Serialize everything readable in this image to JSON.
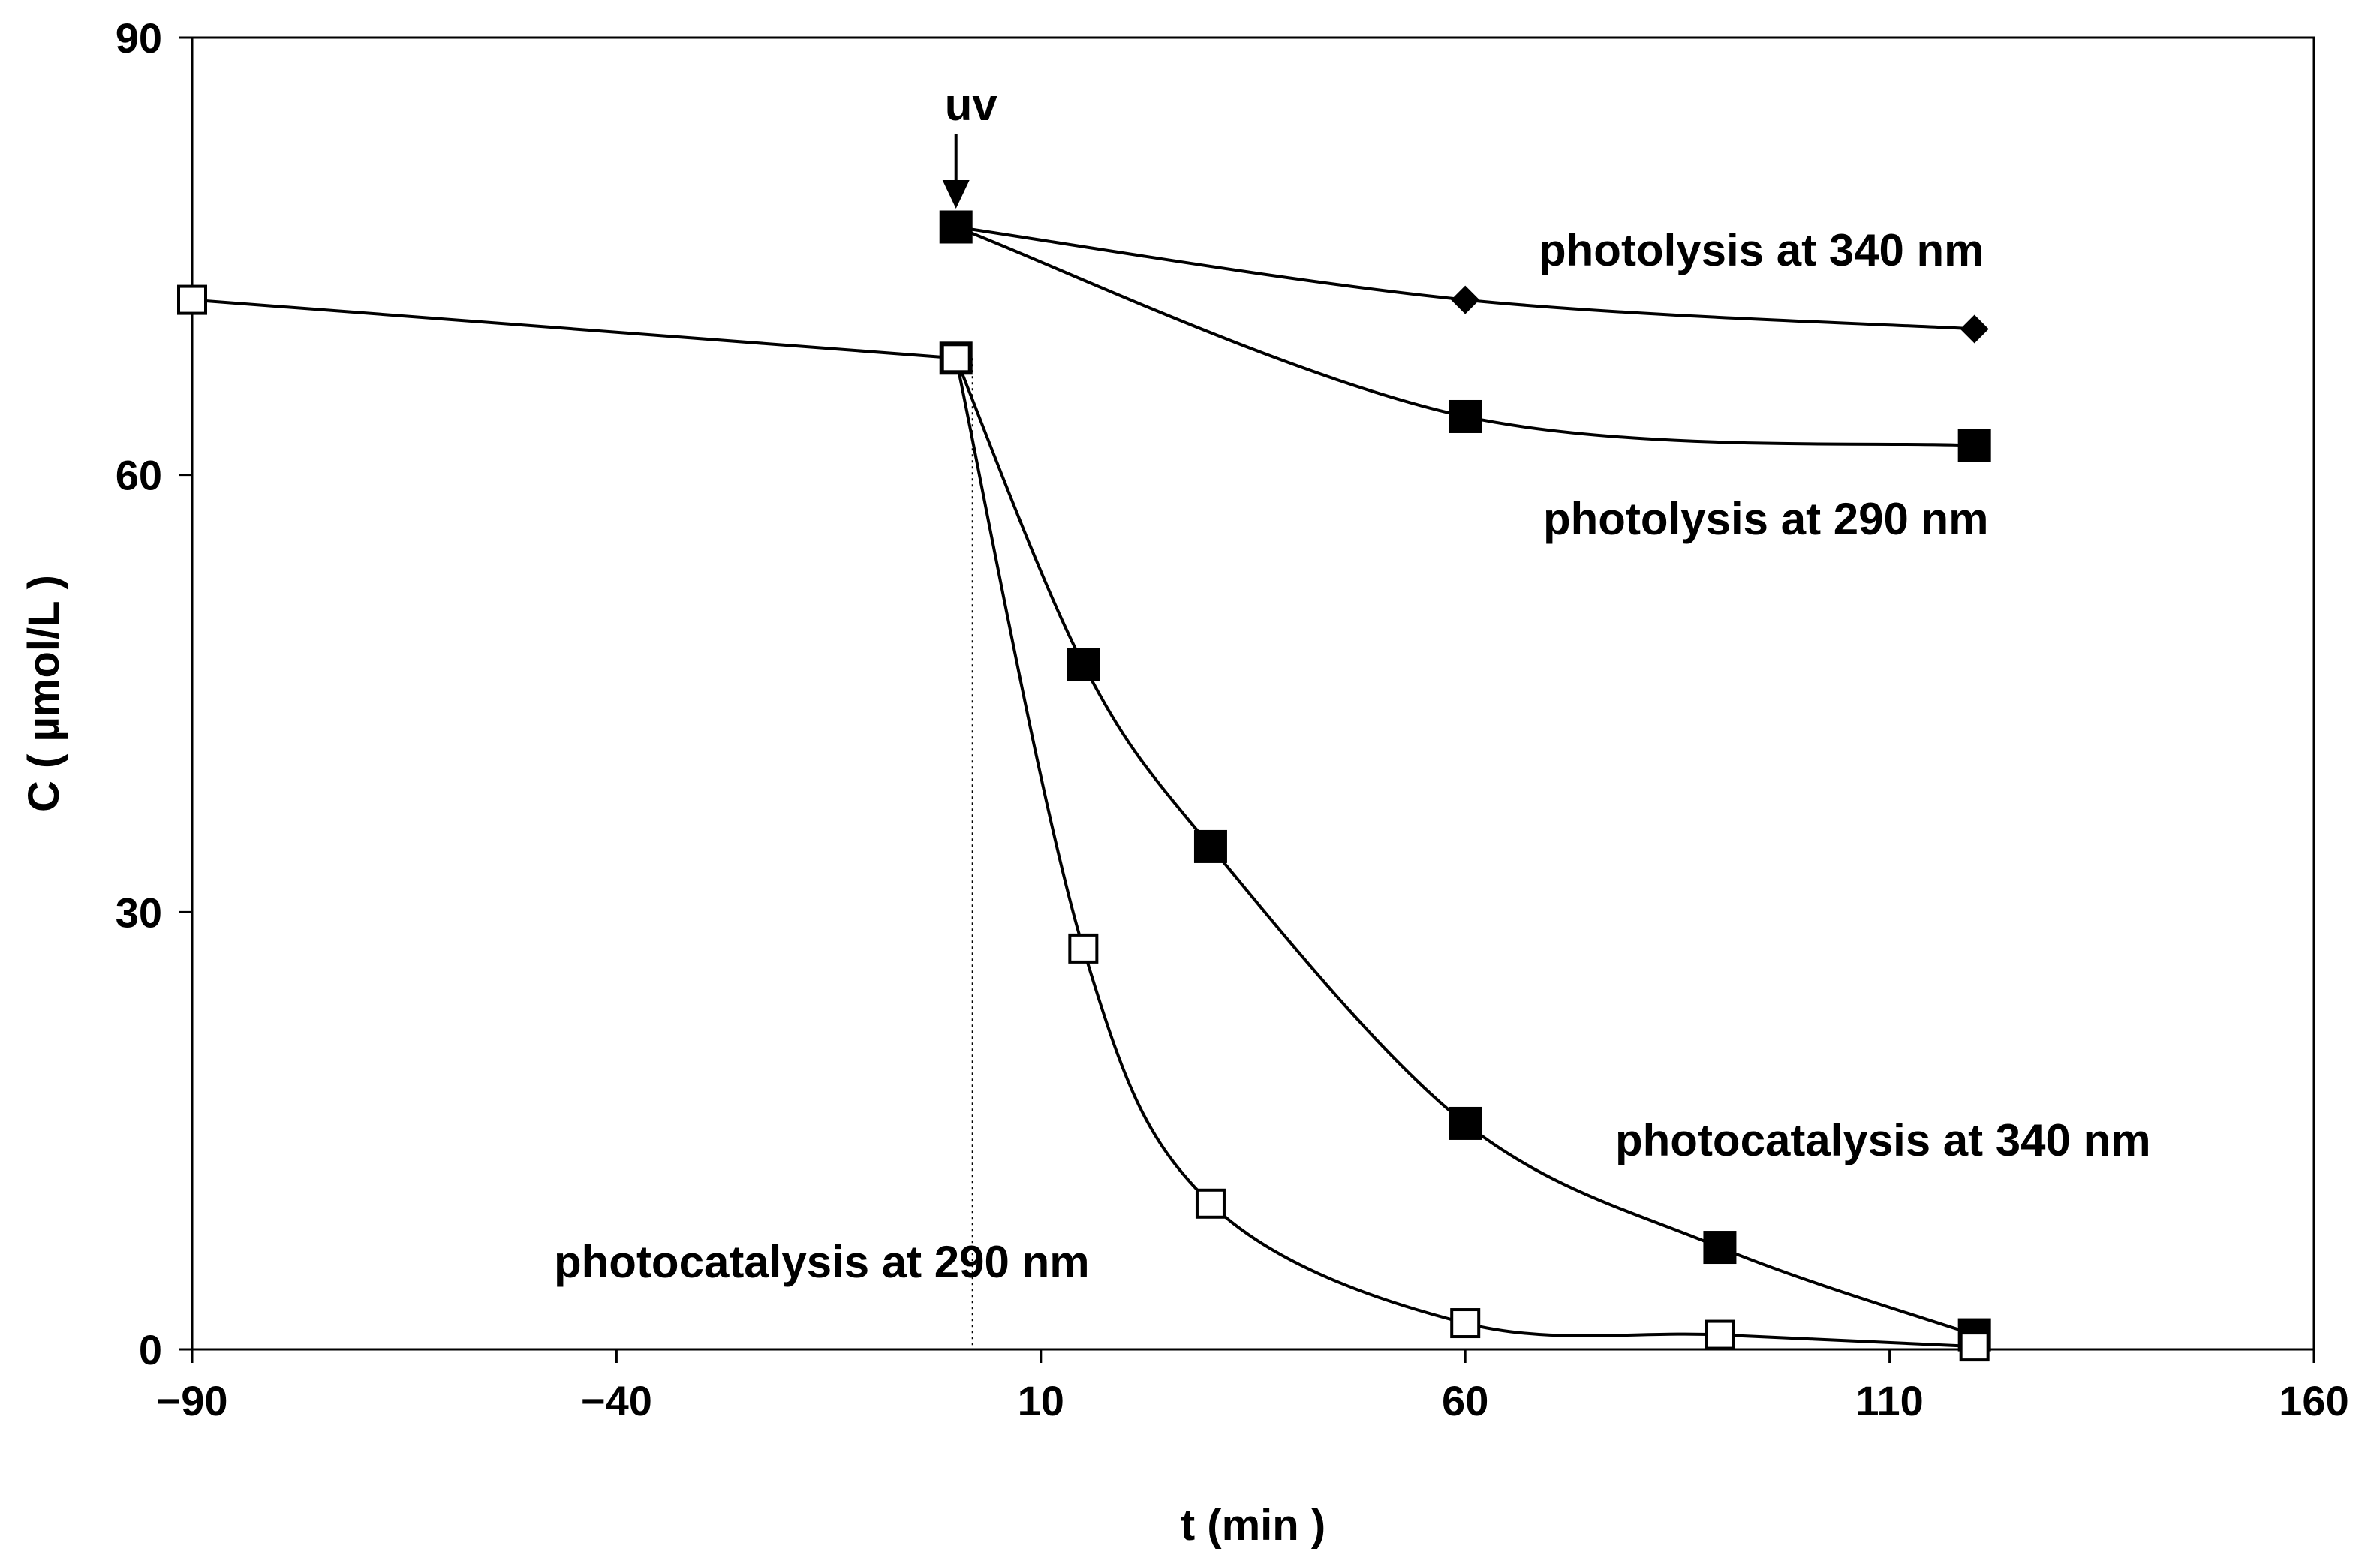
{
  "chart_data": {
    "type": "line",
    "title": "",
    "xlabel": "t (min )",
    "ylabel": "C ( µmol/L )",
    "xlim": [
      -90,
      160
    ],
    "ylim": [
      0,
      90
    ],
    "xticks": [
      -90,
      -40,
      10,
      60,
      110,
      160
    ],
    "yticks": [
      0,
      30,
      60,
      90
    ],
    "grid": false,
    "legend": "none",
    "event_marker": {
      "x": 0,
      "label": "uv"
    },
    "series": [
      {
        "id": "photolysis-340",
        "label": "photolysis at  340 nm",
        "marker": "diamond",
        "x": [
          0,
          60,
          120
        ],
        "y": [
          77,
          72,
          70
        ]
      },
      {
        "id": "photolysis-290",
        "label": "photolysis at 290 nm",
        "marker": "filled-square",
        "x": [
          0,
          60,
          120
        ],
        "y": [
          77,
          64,
          62
        ]
      },
      {
        "id": "photocatalysis-340",
        "label": "photocatalysis at 340 nm",
        "marker": "filled-square",
        "x": [
          0,
          15,
          30,
          60,
          90,
          120
        ],
        "y": [
          68,
          47,
          34.5,
          15.5,
          7,
          1
        ]
      },
      {
        "id": "photocatalysis-290",
        "label": "photocatalysis at 290 nm",
        "marker": "open-square",
        "x": [
          -90,
          0,
          15,
          30,
          60,
          90,
          120
        ],
        "y": [
          72,
          68,
          27.5,
          10,
          1.8,
          1,
          0.2
        ]
      }
    ]
  }
}
